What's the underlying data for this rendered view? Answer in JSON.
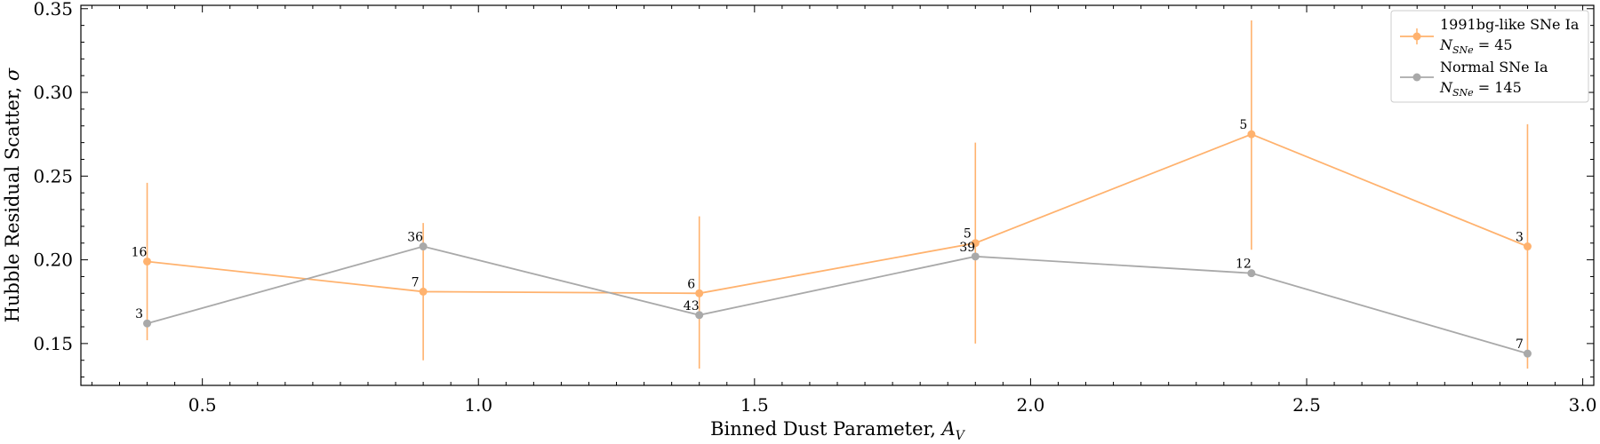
{
  "chart_data": {
    "type": "line",
    "xlabel": "Binned Dust Parameter, ",
    "xlabel_math": "A",
    "xlabel_sub": "V",
    "ylabel": "Hubble Residual Scatter, ",
    "ylabel_math": "σ",
    "xlim": [
      0.28,
      3.02
    ],
    "ylim": [
      0.125,
      0.352
    ],
    "x_ticks": [
      0.5,
      1.0,
      1.5,
      2.0,
      2.5,
      3.0
    ],
    "x_tick_labels": [
      "0.5",
      "1.0",
      "1.5",
      "2.0",
      "2.5",
      "3.0"
    ],
    "y_ticks": [
      0.15,
      0.2,
      0.25,
      0.3,
      0.35
    ],
    "y_tick_labels": [
      "0.15",
      "0.20",
      "0.25",
      "0.30",
      "0.35"
    ],
    "grid": false,
    "legend_position": "top-right",
    "series": [
      {
        "legend_line1": "1991bg-like SNe Ia",
        "legend_n_prefix": "N",
        "legend_n_sub": "SNe",
        "legend_n_value": " = 45",
        "color": "#ffb26e",
        "has_error_bars": true,
        "x": [
          0.4,
          0.9,
          1.4,
          1.9,
          2.4,
          2.9
        ],
        "y": [
          0.199,
          0.181,
          0.18,
          0.21,
          0.275,
          0.208
        ],
        "yerr_low": [
          0.152,
          0.14,
          0.135,
          0.15,
          0.206,
          0.135
        ],
        "yerr_high": [
          0.246,
          0.222,
          0.226,
          0.27,
          0.343,
          0.281
        ],
        "counts": [
          "16",
          "7",
          "6",
          "5",
          "5",
          "3"
        ]
      },
      {
        "legend_line1": "Normal SNe Ia",
        "legend_n_prefix": "N",
        "legend_n_sub": "SNe",
        "legend_n_value": " = 145",
        "color": "#a9a9a9",
        "has_error_bars": false,
        "x": [
          0.4,
          0.9,
          1.4,
          1.9,
          2.4,
          2.9
        ],
        "y": [
          0.162,
          0.208,
          0.167,
          0.202,
          0.192,
          0.144
        ],
        "counts": [
          "3",
          "36",
          "43",
          "39",
          "12",
          "7"
        ]
      }
    ]
  }
}
